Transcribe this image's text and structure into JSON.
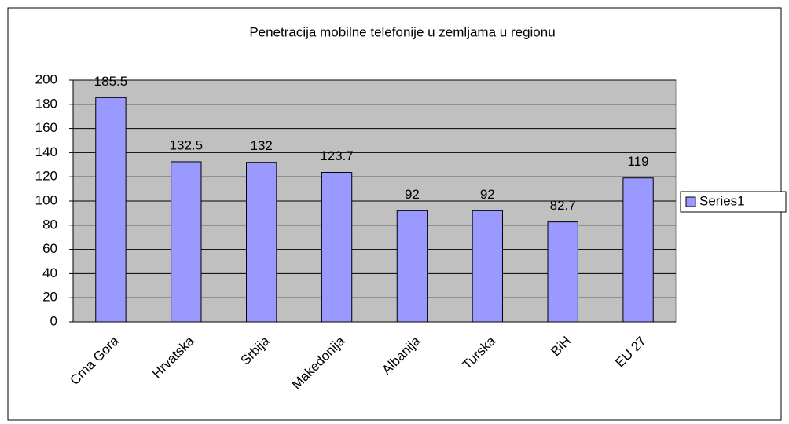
{
  "chart_data": {
    "type": "bar",
    "title": "Penetracija mobilne telefonije u zemljama u regionu",
    "categories": [
      "Crna Gora",
      "Hrvatska",
      "Srbija",
      "Makedonija",
      "Albanija",
      "Turska",
      "BiH",
      "EU 27"
    ],
    "series": [
      {
        "name": "Series1",
        "color": "#9999ff",
        "values": [
          185.5,
          132.5,
          132,
          123.7,
          92,
          92,
          82.7,
          119
        ]
      }
    ],
    "ylim": [
      0,
      200
    ],
    "yticks": [
      0,
      20,
      40,
      60,
      80,
      100,
      120,
      140,
      160,
      180,
      200
    ],
    "grid": true,
    "legend": "right"
  }
}
